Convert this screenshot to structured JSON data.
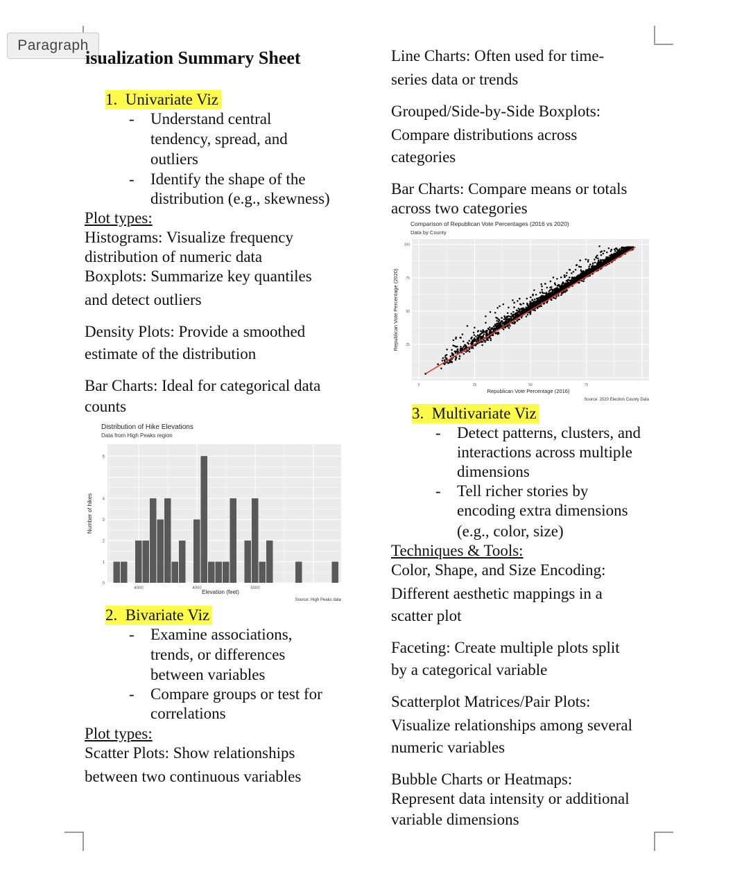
{
  "editor": {
    "style_badge": "Paragraph"
  },
  "doc": {
    "title": "isualization Summary Sheet",
    "left": {
      "sec1_num": "1.",
      "sec1_title": "Univariate Viz",
      "sec1_b1": [
        "Understand central",
        "tendency, spread, and",
        "outliers"
      ],
      "sec1_b2": [
        "Identify the shape of the",
        "distribution (e.g., skewness)"
      ],
      "plot_types_1": "Plot types:",
      "hist": [
        "Histograms: Visualize frequency",
        "distribution of numeric data"
      ],
      "box": [
        "Boxplots: Summarize key quantiles",
        "and detect outliers"
      ],
      "density": [
        "Density Plots: Provide a smoothed",
        "estimate of the distribution"
      ],
      "bar": [
        "Bar Charts: Ideal for categorical data",
        "counts"
      ],
      "sec2_num": "2.",
      "sec2_title": "Bivariate Viz",
      "sec2_b1": [
        "Examine associations,",
        "trends, or differences",
        "between variables"
      ],
      "sec2_b2": [
        "Compare groups or test for",
        "correlations"
      ],
      "plot_types_2": "Plot types:",
      "scatter": [
        "Scatter Plots: Show relationships",
        "between two continuous variables"
      ]
    },
    "right": {
      "line": [
        "Line Charts: Often used for time-",
        "series data or trends"
      ],
      "grouped": [
        "Grouped/Side-by-Side Boxplots:",
        "Compare distributions across",
        "categories"
      ],
      "barcharts": [
        "Bar Charts: Compare means or totals",
        "across two categories"
      ],
      "sec3_num": "3.",
      "sec3_title": "Multivariate Viz",
      "sec3_b1": [
        "Detect patterns, clusters, and",
        "interactions across multiple",
        "dimensions"
      ],
      "sec3_b2": [
        "Tell richer stories by",
        "encoding extra dimensions",
        "(e.g., color, size)"
      ],
      "techniques": "Techniques & Tools:",
      "color": [
        "Color, Shape, and Size Encoding:",
        "Different aesthetic mappings in a",
        "scatter plot"
      ],
      "faceting": [
        "Faceting: Create multiple plots split",
        "by a categorical variable"
      ],
      "matrices": [
        "Scatterplot Matrices/Pair Plots:",
        "Visualize relationships among several",
        "numeric variables"
      ],
      "bubble": [
        "Bubble Charts or Heatmaps:",
        "Represent data intensity or additional",
        "variable dimensions"
      ]
    },
    "bullet": "-"
  },
  "chart_data": [
    {
      "type": "bar",
      "title": "Distribution of Hike Elevations",
      "subtitle": "Data from High Peaks region",
      "xlabel": "Elevation (feet)",
      "ylabel": "Number of hikes",
      "caption": "Source: High Peaks data",
      "x_tick_labels": [
        "4000",
        "4000",
        "5000"
      ],
      "y_ticks": [
        0,
        1,
        2,
        3,
        4,
        6
      ],
      "ylim": [
        0,
        6.3
      ],
      "values": [
        1,
        1,
        0,
        2,
        2,
        4,
        3,
        4,
        1,
        2,
        0,
        3,
        6,
        1,
        1,
        1,
        4,
        0,
        2,
        4,
        1,
        2,
        0,
        0,
        0,
        1,
        0,
        0,
        0,
        0,
        1
      ],
      "bar_color": "#595959",
      "panel_color": "#ebebeb",
      "grid": true
    },
    {
      "type": "scatter",
      "title": "Comparison of Republican Vote Percentages (2016 vs 2020)",
      "subtitle": "Data by County",
      "xlabel": "Republican Vote Percentage (2016)",
      "ylabel": "Republican Vote Percentage (2020)",
      "caption": "Source: 2020 Election County Data",
      "x_ticks": [
        0,
        25,
        50,
        75
      ],
      "y_ticks": [
        25,
        50,
        75,
        100
      ],
      "xlim": [
        0,
        100
      ],
      "ylim": [
        -2,
        104
      ],
      "trend_line": {
        "x": [
          3,
          97
        ],
        "y": [
          3,
          98
        ],
        "color": "#e0382c"
      },
      "point_color": "#000000",
      "panel_color": "#ebebeb",
      "grid": true
    }
  ]
}
